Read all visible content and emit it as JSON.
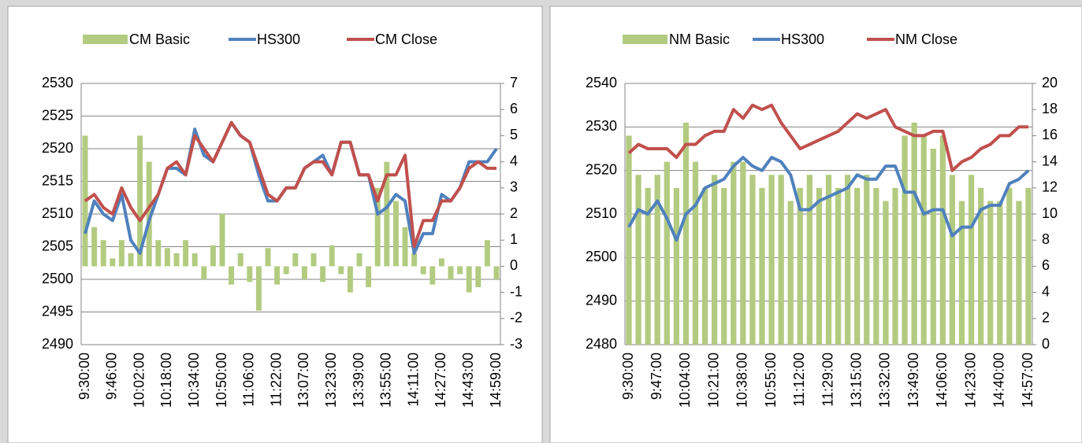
{
  "chart_data": [
    {
      "type": "combo",
      "categories": [
        "9:30:00",
        null,
        null,
        "9:46:00",
        null,
        null,
        "10:02:00",
        null,
        null,
        "10:18:00",
        null,
        null,
        "10:34:00",
        null,
        null,
        "10:50:00",
        null,
        null,
        "11:06:00",
        null,
        null,
        "11:22:00",
        null,
        null,
        "13:07:00",
        null,
        null,
        "13:23:00",
        null,
        null,
        "13:39:00",
        null,
        null,
        "13:55:00",
        null,
        null,
        "14:11:00",
        null,
        null,
        "14:27:00",
        null,
        null,
        "14:43:00",
        null,
        null,
        "14:59:00"
      ],
      "series": [
        {
          "name": "CM Basic",
          "type": "bar",
          "axis": "y2",
          "color": "#b3cb80",
          "values": [
            5,
            1.5,
            1,
            0.3,
            1,
            0.5,
            5,
            4,
            1,
            0.7,
            0.5,
            1,
            0.5,
            -0.5,
            0.8,
            2,
            -0.7,
            0.5,
            -0.6,
            -1.7,
            0.7,
            -0.7,
            -0.3,
            0.5,
            -0.5,
            0.5,
            -0.6,
            0.8,
            -0.3,
            -1,
            0.5,
            -0.8,
            3,
            4,
            2.5,
            1.5,
            0.5,
            -0.3,
            -0.7,
            0.3,
            -0.5,
            -0.3,
            -1,
            -0.8,
            1,
            -0.5
          ]
        },
        {
          "name": "HS300",
          "type": "line",
          "color": "#4f81bd",
          "values": [
            2507,
            2512,
            2510,
            2509,
            2513,
            2506,
            2504,
            2509,
            2513,
            2517,
            2517,
            2516,
            2523,
            2519,
            2518,
            2521,
            2524,
            2522,
            2521,
            2516,
            2512,
            2512,
            2514,
            2514,
            2517,
            2518,
            2519,
            2516,
            2521,
            2521,
            2516,
            2516,
            2510,
            2511,
            2513,
            2512,
            2504,
            2507,
            2507,
            2513,
            2512,
            2514,
            2518,
            2518,
            2518,
            2520
          ]
        },
        {
          "name": "CM Close",
          "type": "line",
          "color": "#c0504d",
          "values": [
            2512,
            2513,
            2511,
            2510,
            2514,
            2511,
            2509,
            2511,
            2513,
            2517,
            2518,
            2516,
            2522,
            2520,
            2518,
            2521,
            2524,
            2522,
            2521,
            2517,
            2513,
            2512,
            2514,
            2514,
            2517,
            2518,
            2518,
            2516,
            2521,
            2521,
            2516,
            2516,
            2512,
            2516,
            2516,
            2519,
            2505,
            2509,
            2509,
            2512,
            2512,
            2514,
            2517,
            2518,
            2517,
            2517
          ]
        }
      ],
      "ylim": [
        2490,
        2530
      ],
      "yticks": [
        2490,
        2495,
        2500,
        2505,
        2510,
        2515,
        2520,
        2525,
        2530
      ],
      "y2lim": [
        -3,
        7
      ],
      "y2ticks": [
        -3,
        -2,
        -1,
        0,
        1,
        2,
        3,
        4,
        5,
        6,
        7
      ],
      "grid": true,
      "legend": "top"
    },
    {
      "type": "combo",
      "categories": [
        "9:30:00",
        null,
        null,
        "9:47:00",
        null,
        null,
        "10:04:00",
        null,
        null,
        "10:21:00",
        null,
        null,
        "10:38:00",
        null,
        null,
        "10:55:00",
        null,
        null,
        "11:12:00",
        null,
        null,
        "11:29:00",
        null,
        null,
        "13:15:00",
        null,
        null,
        "13:32:00",
        null,
        null,
        "13:49:00",
        null,
        null,
        "14:06:00",
        null,
        null,
        "14:23:00",
        null,
        null,
        "14:40:00",
        null,
        null,
        "14:57:00"
      ],
      "series": [
        {
          "name": "NM Basic",
          "type": "bar",
          "axis": "y2",
          "color": "#b3cb80",
          "values": [
            16,
            13,
            12,
            13,
            14,
            12,
            17,
            14,
            12,
            13,
            12,
            14,
            14,
            13,
            12,
            13,
            13,
            11,
            12,
            13,
            12,
            13,
            12,
            13,
            12,
            13,
            12,
            11,
            12,
            16,
            17,
            16,
            15,
            16,
            13,
            11,
            13,
            12,
            11,
            11,
            12,
            11,
            12
          ]
        },
        {
          "name": "HS300",
          "type": "line",
          "color": "#4f81bd",
          "values": [
            2507,
            2511,
            2510,
            2513,
            2509,
            2504,
            2510,
            2512,
            2516,
            2517,
            2518,
            2521,
            2523,
            2521,
            2520,
            2523,
            2522,
            2519,
            2511,
            2511,
            2513,
            2514,
            2515,
            2516,
            2519,
            2518,
            2518,
            2521,
            2521,
            2515,
            2515,
            2510,
            2511,
            2511,
            2505,
            2507,
            2507,
            2511,
            2512,
            2512,
            2517,
            2518,
            2520
          ]
        },
        {
          "name": "NM Close",
          "type": "line",
          "color": "#c0504d",
          "values": [
            2524,
            2526,
            2525,
            2525,
            2525,
            2523,
            2526,
            2526,
            2528,
            2529,
            2529,
            2534,
            2532,
            2535,
            2534,
            2535,
            2531,
            2528,
            2525,
            2526,
            2527,
            2528,
            2529,
            2531,
            2533,
            2532,
            2533,
            2534,
            2530,
            2529,
            2528,
            2528,
            2529,
            2529,
            2520,
            2522,
            2523,
            2525,
            2526,
            2528,
            2528,
            2530,
            2530
          ]
        }
      ],
      "ylim": [
        2480,
        2540
      ],
      "yticks": [
        2480,
        2490,
        2500,
        2510,
        2520,
        2530,
        2540
      ],
      "y2lim": [
        0,
        20
      ],
      "y2ticks": [
        0,
        2,
        4,
        6,
        8,
        10,
        12,
        14,
        16,
        18,
        20
      ],
      "grid": true,
      "legend": "top"
    }
  ]
}
